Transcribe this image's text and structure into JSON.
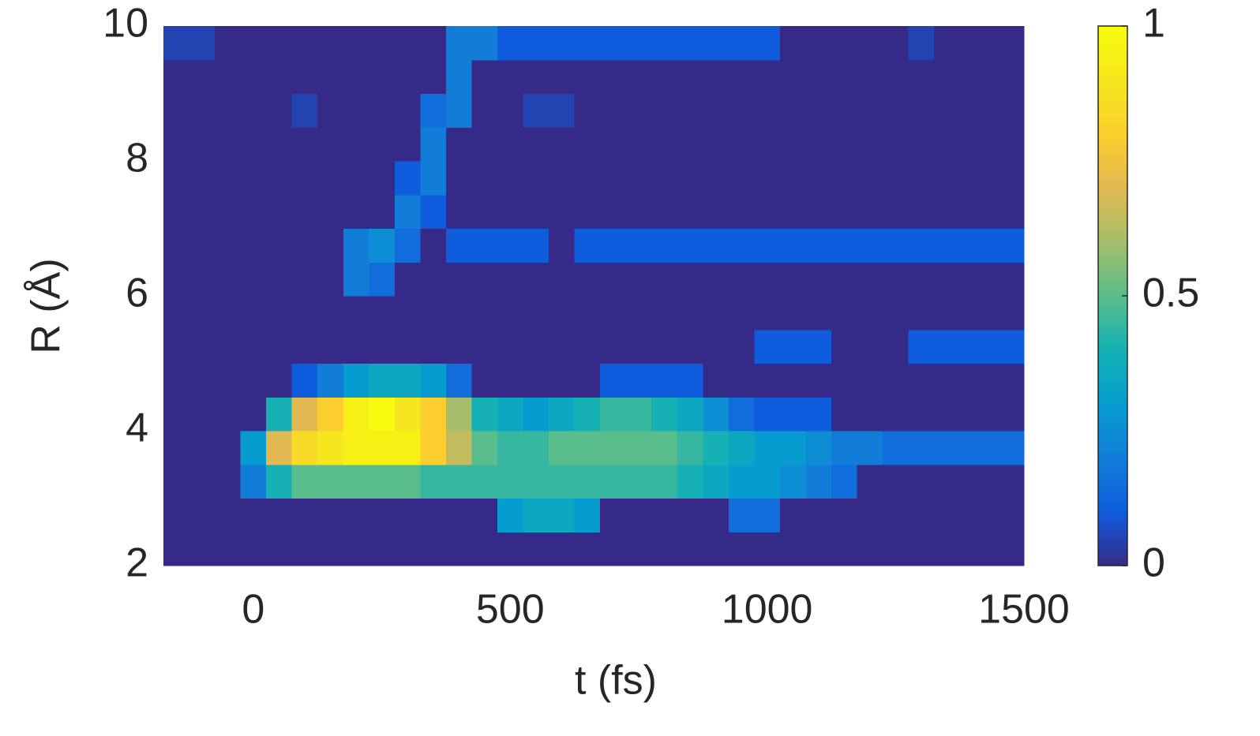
{
  "chart_data": {
    "type": "heatmap",
    "xlabel": "t (fs)",
    "ylabel": "R (Å)",
    "colormap": "parula",
    "x": [
      -150,
      -100,
      -50,
      0,
      50,
      100,
      150,
      200,
      250,
      300,
      350,
      400,
      450,
      500,
      550,
      600,
      650,
      700,
      750,
      800,
      850,
      900,
      950,
      1000,
      1050,
      1100,
      1150,
      1200,
      1250,
      1300,
      1350,
      1400,
      1450
    ],
    "y": [
      2.25,
      2.75,
      3.25,
      3.75,
      4.25,
      4.75,
      5.25,
      5.75,
      6.25,
      6.75,
      7.25,
      7.75,
      8.25,
      8.75,
      9.25,
      9.75
    ],
    "z": [
      [
        0,
        0,
        0,
        0,
        0,
        0,
        0,
        0,
        0,
        0,
        0,
        0,
        0,
        0,
        0,
        0,
        0,
        0,
        0,
        0,
        0,
        0,
        0,
        0,
        0,
        0,
        0,
        0,
        0,
        0,
        0,
        0,
        0
      ],
      [
        0,
        0,
        0,
        0,
        0,
        0,
        0,
        0,
        0,
        0,
        0,
        0,
        0,
        0.3,
        0.35,
        0.35,
        0.3,
        0,
        0,
        0,
        0,
        0,
        0.15,
        0.15,
        0,
        0,
        0,
        0,
        0,
        0,
        0,
        0,
        0
      ],
      [
        0,
        0,
        0,
        0.2,
        0.4,
        0.5,
        0.5,
        0.5,
        0.5,
        0.5,
        0.45,
        0.45,
        0.45,
        0.45,
        0.45,
        0.45,
        0.45,
        0.45,
        0.45,
        0.45,
        0.4,
        0.35,
        0.3,
        0.3,
        0.25,
        0.2,
        0.15,
        0,
        0,
        0,
        0,
        0,
        0
      ],
      [
        0,
        0,
        0,
        0.3,
        0.7,
        0.85,
        0.9,
        0.95,
        0.95,
        0.95,
        0.8,
        0.65,
        0.5,
        0.45,
        0.45,
        0.5,
        0.5,
        0.5,
        0.5,
        0.5,
        0.45,
        0.4,
        0.35,
        0.3,
        0.3,
        0.25,
        0.2,
        0.2,
        0.15,
        0.15,
        0.15,
        0.15,
        0.15
      ],
      [
        0,
        0,
        0,
        0,
        0.4,
        0.7,
        0.8,
        0.95,
        1,
        0.9,
        0.8,
        0.6,
        0.4,
        0.35,
        0.3,
        0.35,
        0.4,
        0.45,
        0.45,
        0.4,
        0.35,
        0.25,
        0.15,
        0.1,
        0.1,
        0.1,
        0,
        0,
        0,
        0,
        0,
        0,
        0
      ],
      [
        0,
        0,
        0,
        0,
        0,
        0.1,
        0.2,
        0.3,
        0.35,
        0.35,
        0.3,
        0.15,
        0,
        0,
        0,
        0,
        0,
        0.1,
        0.1,
        0.1,
        0.1,
        0,
        0,
        0,
        0,
        0,
        0,
        0,
        0,
        0,
        0,
        0,
        0
      ],
      [
        0,
        0,
        0,
        0,
        0,
        0,
        0,
        0,
        0,
        0,
        0,
        0,
        0,
        0,
        0,
        0,
        0,
        0,
        0,
        0,
        0,
        0,
        0,
        0.1,
        0.1,
        0.1,
        0,
        0,
        0,
        0.1,
        0.1,
        0.1,
        0.1
      ],
      [
        0,
        0,
        0,
        0,
        0,
        0,
        0,
        0,
        0,
        0,
        0,
        0,
        0,
        0,
        0,
        0,
        0,
        0,
        0,
        0,
        0,
        0,
        0,
        0,
        0,
        0,
        0,
        0,
        0,
        0,
        0,
        0,
        0
      ],
      [
        0,
        0,
        0,
        0,
        0,
        0,
        0,
        0.2,
        0.15,
        0,
        0,
        0,
        0,
        0,
        0,
        0,
        0,
        0,
        0,
        0,
        0,
        0,
        0,
        0,
        0,
        0,
        0,
        0,
        0,
        0,
        0,
        0,
        0
      ],
      [
        0,
        0,
        0,
        0,
        0,
        0,
        0,
        0.2,
        0.25,
        0.15,
        0,
        0.1,
        0.1,
        0.1,
        0.1,
        0,
        0.1,
        0.1,
        0.1,
        0.1,
        0.1,
        0.1,
        0.1,
        0.1,
        0.1,
        0.1,
        0.1,
        0.1,
        0.1,
        0.1,
        0.1,
        0.1,
        0.1
      ],
      [
        0,
        0,
        0,
        0,
        0,
        0,
        0,
        0,
        0,
        0.2,
        0.1,
        0,
        0,
        0,
        0,
        0,
        0,
        0,
        0,
        0,
        0,
        0,
        0,
        0,
        0,
        0,
        0,
        0,
        0,
        0,
        0,
        0,
        0
      ],
      [
        0,
        0,
        0,
        0,
        0,
        0,
        0,
        0,
        0,
        0.1,
        0.2,
        0,
        0,
        0,
        0,
        0,
        0,
        0,
        0,
        0,
        0,
        0,
        0,
        0,
        0,
        0,
        0,
        0,
        0,
        0,
        0,
        0,
        0
      ],
      [
        0,
        0,
        0,
        0,
        0,
        0,
        0,
        0,
        0,
        0,
        0.2,
        0,
        0,
        0,
        0,
        0,
        0,
        0,
        0,
        0,
        0,
        0,
        0,
        0,
        0,
        0,
        0,
        0,
        0,
        0,
        0,
        0,
        0
      ],
      [
        0,
        0,
        0,
        0,
        0,
        0.05,
        0,
        0,
        0,
        0,
        0.15,
        0.2,
        0,
        0,
        0.05,
        0.05,
        0,
        0,
        0,
        0,
        0,
        0,
        0,
        0,
        0,
        0,
        0,
        0,
        0,
        0,
        0,
        0,
        0
      ],
      [
        0,
        0,
        0,
        0,
        0,
        0,
        0,
        0,
        0,
        0,
        0,
        0.2,
        0,
        0,
        0,
        0,
        0,
        0,
        0,
        0,
        0,
        0,
        0,
        0,
        0,
        0,
        0,
        0,
        0,
        0,
        0,
        0,
        0
      ],
      [
        0.05,
        0.05,
        0,
        0,
        0,
        0,
        0,
        0,
        0,
        0,
        0,
        0.2,
        0.2,
        0.1,
        0.1,
        0.1,
        0.1,
        0.1,
        0.1,
        0.1,
        0.1,
        0.1,
        0.1,
        0.1,
        0,
        0,
        0,
        0,
        0,
        0.05,
        0,
        0,
        0
      ]
    ],
    "xlim": [
      -175,
      1500
    ],
    "ylim": [
      2,
      10
    ],
    "xticks": [
      0,
      500,
      1000,
      1500
    ],
    "yticks": [
      2,
      4,
      6,
      8,
      10
    ],
    "colorbar": {
      "clim": [
        0,
        1
      ],
      "ticks": [
        0,
        0.5,
        1
      ]
    }
  }
}
